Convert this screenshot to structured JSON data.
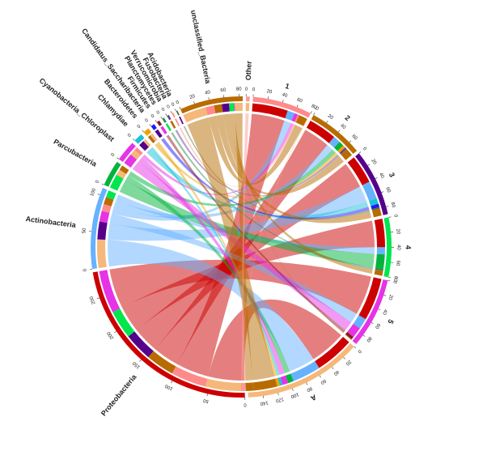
{
  "chart_data": {
    "type": "chord",
    "title": "",
    "sectors": [
      {
        "name": "Proteobacteria",
        "value": 285,
        "color": "#cc0000",
        "ticks": [
          0,
          50,
          100,
          150,
          200,
          250
        ]
      },
      {
        "name": "Actinobacteria",
        "value": 110,
        "color": "#66b2ff",
        "ticks": [
          0,
          50,
          100
        ]
      },
      {
        "name": "Parcubacteria",
        "value": 35,
        "color": "#00b33c",
        "ticks": [
          0
        ]
      },
      {
        "name": "Cyanobacteria_Chloroplast",
        "value": 28,
        "color": "#e633e6",
        "ticks": [
          0
        ]
      },
      {
        "name": "Chlamydiae",
        "value": 12,
        "color": "#19c2d6",
        "ticks": [
          0
        ]
      },
      {
        "name": "Bacteroidetes",
        "value": 8,
        "color": "#f0a000",
        "ticks": [
          0
        ]
      },
      {
        "name": "Candidatus_Saccharibacteria",
        "value": 5,
        "color": "#1a1aff",
        "ticks": [
          0
        ]
      },
      {
        "name": "Firmicutes",
        "value": 4,
        "color": "#8b1a1a",
        "ticks": [
          0
        ]
      },
      {
        "name": "Planctomycetes",
        "value": 3,
        "color": "#2e8b57",
        "ticks": [
          0
        ]
      },
      {
        "name": "Verrucomicrobia",
        "value": 3,
        "color": "#6b3fa0",
        "ticks": [
          0
        ]
      },
      {
        "name": "Fusobacteria",
        "value": 2,
        "color": "#ff8c69",
        "ticks": [
          0
        ]
      },
      {
        "name": "Acidobacteria",
        "value": 2,
        "color": "#556b2f",
        "ticks": [
          0
        ]
      },
      {
        "name": "unclassified_Bacteria",
        "value": 85,
        "color": "#b86b00",
        "ticks": [
          0,
          20,
          40,
          60,
          80
        ]
      },
      {
        "name": "Other",
        "value": 5,
        "color": "#ff9999",
        "ticks": [
          0
        ]
      },
      {
        "name": "1",
        "value": 80,
        "color": "#ff8a8a",
        "ticks": [
          0,
          20,
          40,
          60,
          80
        ]
      },
      {
        "name": "2",
        "value": 75,
        "color": "#b86b00",
        "ticks": [
          0,
          20,
          40,
          60
        ]
      },
      {
        "name": "3",
        "value": 90,
        "color": "#55008b",
        "ticks": [
          0,
          20,
          40,
          60,
          80
        ]
      },
      {
        "name": "4",
        "value": 80,
        "color": "#00e64d",
        "ticks": [
          0,
          20,
          40,
          60,
          80
        ]
      },
      {
        "name": "5",
        "value": 95,
        "color": "#e633e6",
        "ticks": [
          0,
          20,
          40,
          60,
          80
        ]
      },
      {
        "name": "A",
        "value": 160,
        "color": "#f5b87a",
        "ticks": [
          0,
          20,
          40,
          60,
          80,
          100,
          120,
          140
        ]
      }
    ],
    "links": [
      {
        "from": "Proteobacteria",
        "to": "A",
        "value": 55
      },
      {
        "from": "Proteobacteria",
        "to": "1",
        "value": 50
      },
      {
        "from": "Proteobacteria",
        "to": "2",
        "value": 40
      },
      {
        "from": "Proteobacteria",
        "to": "3",
        "value": 40
      },
      {
        "from": "Proteobacteria",
        "to": "4",
        "value": 40
      },
      {
        "from": "Proteobacteria",
        "to": "5",
        "value": 60
      },
      {
        "from": "Actinobacteria",
        "to": "A",
        "value": 40
      },
      {
        "from": "Actinobacteria",
        "to": "3",
        "value": 25
      },
      {
        "from": "Actinobacteria",
        "to": "5",
        "value": 15
      },
      {
        "from": "Actinobacteria",
        "to": "1",
        "value": 10
      },
      {
        "from": "Actinobacteria",
        "to": "2",
        "value": 10
      },
      {
        "from": "Actinobacteria",
        "to": "4",
        "value": 10
      },
      {
        "from": "Parcubacteria",
        "to": "4",
        "value": 20
      },
      {
        "from": "Parcubacteria",
        "to": "A",
        "value": 8
      },
      {
        "from": "Parcubacteria",
        "to": "2",
        "value": 7
      },
      {
        "from": "Cyanobacteria_Chloroplast",
        "to": "5",
        "value": 15
      },
      {
        "from": "Cyanobacteria_Chloroplast",
        "to": "A",
        "value": 8
      },
      {
        "from": "Cyanobacteria_Chloroplast",
        "to": "1",
        "value": 5
      },
      {
        "from": "Chlamydiae",
        "to": "3",
        "value": 8
      },
      {
        "from": "Chlamydiae",
        "to": "A",
        "value": 4
      },
      {
        "from": "Bacteroidetes",
        "to": "2",
        "value": 4
      },
      {
        "from": "Bacteroidetes",
        "to": "A",
        "value": 4
      },
      {
        "from": "Candidatus_Saccharibacteria",
        "to": "3",
        "value": 5
      },
      {
        "from": "Firmicutes",
        "to": "5",
        "value": 4
      },
      {
        "from": "Planctomycetes",
        "to": "4",
        "value": 3
      },
      {
        "from": "Verrucomicrobia",
        "to": "2",
        "value": 3
      },
      {
        "from": "Fusobacteria",
        "to": "1",
        "value": 2
      },
      {
        "from": "Acidobacteria",
        "to": "3",
        "value": 2
      },
      {
        "from": "unclassified_Bacteria",
        "to": "A",
        "value": 33
      },
      {
        "from": "unclassified_Bacteria",
        "to": "1",
        "value": 12
      },
      {
        "from": "unclassified_Bacteria",
        "to": "2",
        "value": 11
      },
      {
        "from": "unclassified_Bacteria",
        "to": "3",
        "value": 10
      },
      {
        "from": "unclassified_Bacteria",
        "to": "4",
        "value": 7
      },
      {
        "from": "unclassified_Bacteria",
        "to": "5",
        "value": 1
      },
      {
        "from": "unclassified_Bacteria",
        "to": "A",
        "value": 11
      },
      {
        "from": "Other",
        "to": "A",
        "value": 5
      },
      {
        "from": "A",
        "to": "1",
        "value": 1
      }
    ]
  }
}
